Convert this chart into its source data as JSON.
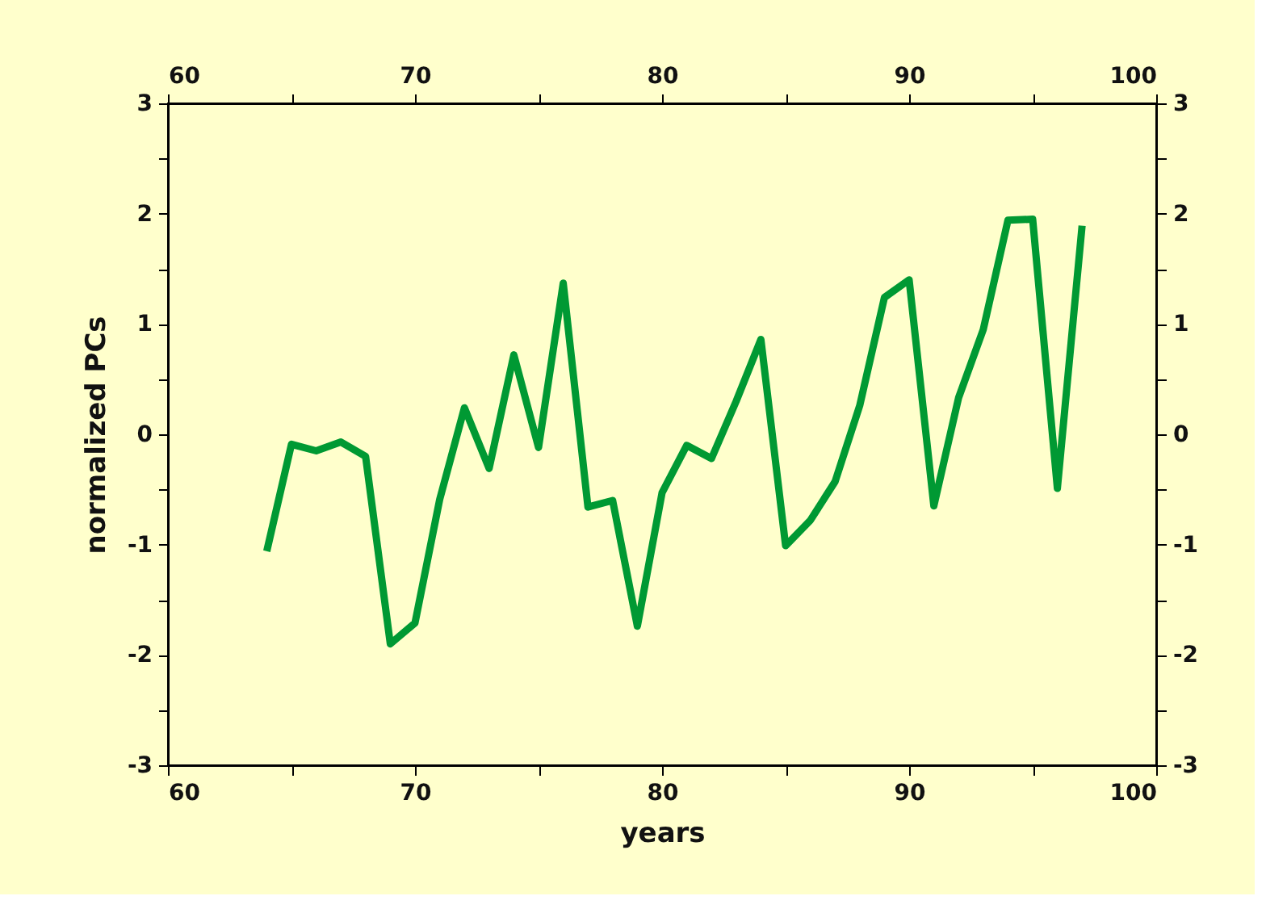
{
  "chart_data": {
    "type": "line",
    "xlabel": "years",
    "ylabel": "normalized PCs",
    "x": [
      64,
      65,
      66,
      67,
      68,
      69,
      70,
      71,
      72,
      73,
      74,
      75,
      76,
      77,
      78,
      79,
      80,
      81,
      82,
      83,
      84,
      85,
      86,
      87,
      88,
      89,
      90,
      91,
      92,
      93,
      94,
      95,
      96,
      97
    ],
    "series": [
      {
        "color": "#009933",
        "values": [
          -1.06,
          -0.09,
          -0.15,
          -0.07,
          -0.2,
          -1.9,
          -1.71,
          -0.59,
          0.24,
          -0.31,
          0.72,
          -0.12,
          1.37,
          -0.66,
          -0.6,
          -1.74,
          -0.53,
          -0.1,
          -0.22,
          0.3,
          0.86,
          -1.01,
          -0.78,
          -0.43,
          0.26,
          1.24,
          1.4,
          -0.65,
          0.33,
          0.95,
          1.94,
          1.95,
          -0.49,
          1.89
        ]
      }
    ],
    "xlim": [
      60,
      100
    ],
    "xticks": [
      60,
      {
        "value": 65,
        "label": null
      },
      70,
      {
        "value": 75,
        "label": null
      },
      80,
      {
        "value": 85,
        "label": null
      },
      90,
      {
        "value": 95,
        "label": null
      },
      100
    ],
    "x2lim": [
      60,
      100
    ],
    "x2ticks": [
      60,
      {
        "value": 65,
        "label": null
      },
      70,
      {
        "value": 75,
        "label": null
      },
      80,
      {
        "value": 85,
        "label": null
      },
      90,
      {
        "value": 95,
        "label": null
      },
      100
    ],
    "ylim": [
      -3,
      3
    ],
    "yticks": [
      -3,
      {
        "value": -2.5,
        "label": null
      },
      -2,
      {
        "value": -1.5,
        "label": null
      },
      -1,
      {
        "value": -0.5,
        "label": null
      },
      0,
      {
        "value": 0.5,
        "label": null
      },
      1,
      {
        "value": 1.5,
        "label": null
      },
      2,
      {
        "value": 2.5,
        "label": null
      },
      3
    ],
    "y2lim": [
      -3,
      3
    ],
    "y2ticks": [
      -3,
      {
        "value": -2.5,
        "label": null
      },
      -2,
      {
        "value": -1.5,
        "label": null
      },
      -1,
      {
        "value": -0.5,
        "label": null
      },
      0,
      {
        "value": 0.5,
        "label": null
      },
      1,
      {
        "value": 1.5,
        "label": null
      },
      2,
      {
        "value": 2.5,
        "label": null
      },
      3
    ],
    "grid": false,
    "marker": "none",
    "line_style": "solid"
  }
}
